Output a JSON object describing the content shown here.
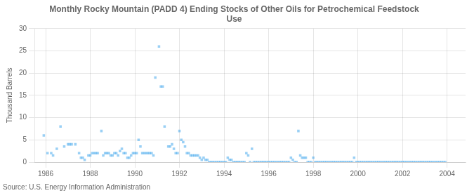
{
  "chart_data": {
    "type": "scatter",
    "title": "Monthly Rocky Mountain (PADD 4) Ending Stocks of Other Oils for Petrochemical Feedstock\nUse",
    "y_label": "Thousand Barrels",
    "source": "Source: U.S. Energy Information Administration",
    "marker": "square",
    "grid": true,
    "xlim": [
      1985.5,
      2004.83
    ],
    "ylim": [
      0,
      30
    ],
    "xticks": [
      1986,
      1988,
      1990,
      1992,
      1994,
      1996,
      1998,
      2000,
      2002,
      2004
    ],
    "yticks": [
      0,
      5,
      10,
      15,
      20,
      25,
      30
    ],
    "x": [
      1985.917,
      1986.083,
      1986.25,
      1986.333,
      1986.5,
      1986.667,
      1986.833,
      1987.0,
      1987.083,
      1987.167,
      1987.333,
      1987.5,
      1987.583,
      1987.667,
      1987.75,
      1987.917,
      1988.0,
      1988.083,
      1988.167,
      1988.25,
      1988.333,
      1988.5,
      1988.583,
      1988.667,
      1988.75,
      1988.833,
      1988.917,
      1989.0,
      1989.083,
      1989.167,
      1989.25,
      1989.333,
      1989.417,
      1989.5,
      1989.583,
      1989.667,
      1989.75,
      1989.833,
      1989.917,
      1990.0,
      1990.083,
      1990.167,
      1990.25,
      1990.333,
      1990.417,
      1990.5,
      1990.583,
      1990.667,
      1990.75,
      1990.833,
      1990.917,
      1991.083,
      1991.167,
      1991.25,
      1991.333,
      1991.5,
      1991.583,
      1991.667,
      1991.75,
      1991.833,
      1991.917,
      1992.0,
      1992.083,
      1992.167,
      1992.25,
      1992.333,
      1992.417,
      1992.5,
      1992.583,
      1992.667,
      1992.75,
      1992.833,
      1992.917,
      1993.0,
      1993.083,
      1993.167,
      1993.25,
      1993.333,
      1993.417,
      1993.5,
      1993.583,
      1993.667,
      1993.75,
      1993.833,
      1993.917,
      1994.0,
      1994.083,
      1994.167,
      1994.25,
      1994.333,
      1994.417,
      1994.5,
      1994.583,
      1994.667,
      1994.75,
      1994.833,
      1994.917,
      1995.0,
      1995.083,
      1995.167,
      1995.25,
      1995.333,
      1995.417,
      1995.5,
      1995.583,
      1995.667,
      1995.75,
      1995.833,
      1995.917,
      1996.0,
      1996.083,
      1996.167,
      1996.25,
      1996.333,
      1996.417,
      1996.5,
      1996.583,
      1996.667,
      1996.75,
      1996.833,
      1996.917,
      1997.0,
      1997.083,
      1997.167,
      1997.25,
      1997.333,
      1997.417,
      1997.5,
      1997.583,
      1997.667,
      1997.75,
      1997.833,
      1997.917,
      1998.0,
      1998.083,
      1998.167,
      1998.25,
      1998.333,
      1998.417,
      1998.5,
      1998.583,
      1998.667,
      1998.75,
      1998.833,
      1998.917,
      1999.0,
      1999.083,
      1999.167,
      1999.25,
      1999.333,
      1999.417,
      1999.5,
      1999.583,
      1999.667,
      1999.75,
      1999.833,
      1999.917,
      2000.0,
      2000.083,
      2000.167,
      2000.25,
      2000.333,
      2000.417,
      2000.5,
      2000.583,
      2000.667,
      2000.75,
      2000.833,
      2000.917,
      2001.0,
      2001.083,
      2001.167,
      2001.25,
      2001.333,
      2001.417,
      2001.5,
      2001.583,
      2001.667,
      2001.75,
      2001.833,
      2001.917,
      2002.0,
      2002.083,
      2002.167,
      2002.25,
      2002.333,
      2002.417,
      2002.5,
      2002.583,
      2002.667,
      2002.75,
      2002.833,
      2002.917,
      2003.0,
      2003.083,
      2003.167,
      2003.25,
      2003.333,
      2003.417,
      2003.5,
      2003.583,
      2003.667,
      2003.75,
      2003.833,
      2003.917
    ],
    "values": [
      6.0,
      2.0,
      2.0,
      1.5,
      3.0,
      8.0,
      3.5,
      4.0,
      4.0,
      4.0,
      4.0,
      2.0,
      1.0,
      1.0,
      0.5,
      1.5,
      1.5,
      2.0,
      2.0,
      2.0,
      2.0,
      7.0,
      1.5,
      2.0,
      2.0,
      2.0,
      1.5,
      1.5,
      2.0,
      2.0,
      1.5,
      2.5,
      3.0,
      2.0,
      2.0,
      1.0,
      1.0,
      1.5,
      2.0,
      2.0,
      2.0,
      5.0,
      3.5,
      2.0,
      2.0,
      2.0,
      2.0,
      2.0,
      2.0,
      1.5,
      19.0,
      26.0,
      17.0,
      17.0,
      8.0,
      3.5,
      3.5,
      4.0,
      3.0,
      2.0,
      2.0,
      7.0,
      5.0,
      4.5,
      3.5,
      2.0,
      2.0,
      1.5,
      1.5,
      1.5,
      1.5,
      1.5,
      1.0,
      0.5,
      1.0,
      0.5,
      0.5,
      0.0,
      0.0,
      0.0,
      0.0,
      0.0,
      0.0,
      0.0,
      0.0,
      0.0,
      0.0,
      1.0,
      0.5,
      0.5,
      0.0,
      0.0,
      0.0,
      0.0,
      0.0,
      0.0,
      0.0,
      2.0,
      1.5,
      0.0,
      3.0,
      0.0,
      0.0,
      0.0,
      0.0,
      0.0,
      0.0,
      0.0,
      0.0,
      0.0,
      0.0,
      0.0,
      0.0,
      0.0,
      0.0,
      0.0,
      0.0,
      0.0,
      0.0,
      0.0,
      0.0,
      1.0,
      0.5,
      0.0,
      0.0,
      7.0,
      1.5,
      1.0,
      1.0,
      1.0,
      0.0,
      0.0,
      0.0,
      1.0,
      0.0,
      0.0,
      0.0,
      0.0,
      0.0,
      0.0,
      0.0,
      0.0,
      0.0,
      0.0,
      0.0,
      0.0,
      0.0,
      0.0,
      0.0,
      0.0,
      0.0,
      0.0,
      0.0,
      0.0,
      0.0,
      1.0,
      0.0,
      0.0,
      0.0,
      0.0,
      0.0,
      0.0,
      0.0,
      0.0,
      0.0,
      0.0,
      0.0,
      0.0,
      0.0,
      0.0,
      0.0,
      0.0,
      0.0,
      0.0,
      0.0,
      0.0,
      0.0,
      0.0,
      0.0,
      0.0,
      0.0,
      0.0,
      0.0,
      0.0,
      0.0,
      0.0,
      0.0,
      0.0,
      0.0,
      0.0,
      0.0,
      0.0,
      0.0,
      0.0,
      0.0,
      0.0,
      0.0,
      0.0,
      0.0,
      0.0,
      0.0,
      0.0,
      0.0,
      0.0,
      0.0
    ]
  }
}
